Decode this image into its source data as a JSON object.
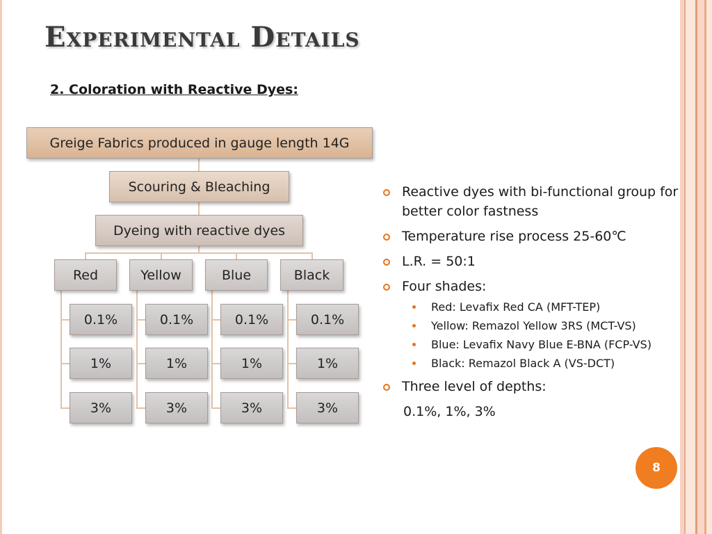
{
  "title": "Experimental Details",
  "subtitle": "2. Coloration with Reactive Dyes:",
  "flow": {
    "root": "Greige Fabrics produced in gauge length 14G",
    "step1": "Scouring & Bleaching",
    "step2": "Dyeing with reactive dyes",
    "colors": [
      {
        "label": "Red",
        "depths": [
          "0.1%",
          "1%",
          "3%"
        ]
      },
      {
        "label": "Yellow",
        "depths": [
          "0.1%",
          "1%",
          "3%"
        ]
      },
      {
        "label": "Blue",
        "depths": [
          "0.1%",
          "1%",
          "3%"
        ]
      },
      {
        "label": "Black",
        "depths": [
          "0.1%",
          "1%",
          "3%"
        ]
      }
    ]
  },
  "bullets": {
    "item1": "Reactive dyes with bi-functional group for better color fastness",
    "item2": "Temperature rise process 25-60℃",
    "item3": "L.R. = 50:1",
    "item4": "Four shades:",
    "shades": [
      "Red: Levafix Red CA (MFT-TEP)",
      "Yellow: Remazol Yellow 3RS (MCT-VS)",
      "Blue: Levafix Navy Blue E-BNA (FCP-VS)",
      "Black: Remazol Black A (VS-DCT)"
    ],
    "item5": "Three level of depths:",
    "item5_values": "0.1%, 1%, 3%"
  },
  "page_number": "8",
  "colors": {
    "accent": "#f07d1f",
    "connector": "#e3c2a8"
  }
}
